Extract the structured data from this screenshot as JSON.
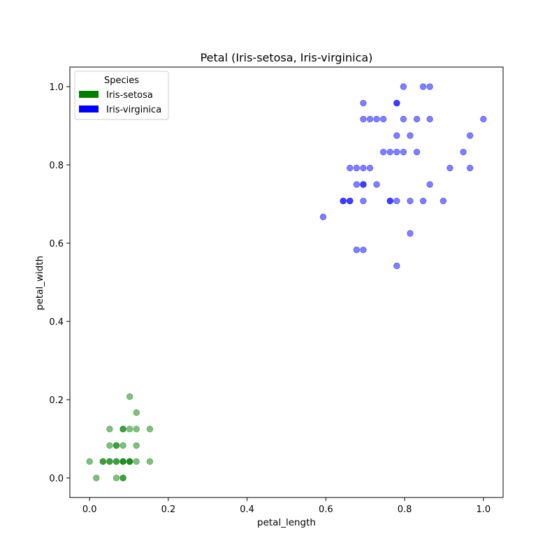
{
  "chart_data": {
    "type": "scatter",
    "title": "Petal (Iris-setosa, Iris-virginica)",
    "xlabel": "petal_length",
    "ylabel": "petal_width",
    "xlim": [
      -0.05,
      1.05
    ],
    "ylim": [
      -0.05,
      1.05
    ],
    "xticks": [
      0.0,
      0.2,
      0.4,
      0.6,
      0.8,
      1.0
    ],
    "yticks": [
      0.0,
      0.2,
      0.4,
      0.6,
      0.8,
      1.0
    ],
    "xtick_labels": [
      "0.0",
      "0.2",
      "0.4",
      "0.6",
      "0.8",
      "1.0"
    ],
    "ytick_labels": [
      "0.0",
      "0.2",
      "0.4",
      "0.6",
      "0.8",
      "1.0"
    ],
    "grid": false,
    "legend": {
      "title": "Species",
      "placement": "upper-left"
    },
    "point_alpha": 0.5,
    "series": [
      {
        "name": "Iris-setosa",
        "color": "#008000",
        "points": [
          [
            0.0,
            0.042
          ],
          [
            0.017,
            0.0
          ],
          [
            0.034,
            0.042
          ],
          [
            0.051,
            0.042
          ],
          [
            0.068,
            0.042
          ],
          [
            0.085,
            0.042
          ],
          [
            0.102,
            0.042
          ],
          [
            0.119,
            0.042
          ],
          [
            0.153,
            0.042
          ],
          [
            0.034,
            0.042
          ],
          [
            0.068,
            0.042
          ],
          [
            0.085,
            0.042
          ],
          [
            0.102,
            0.042
          ],
          [
            0.068,
            0.0
          ],
          [
            0.085,
            0.0
          ],
          [
            0.085,
            0.0
          ],
          [
            0.051,
            0.083
          ],
          [
            0.068,
            0.083
          ],
          [
            0.068,
            0.083
          ],
          [
            0.085,
            0.083
          ],
          [
            0.119,
            0.083
          ],
          [
            0.051,
            0.125
          ],
          [
            0.085,
            0.125
          ],
          [
            0.085,
            0.125
          ],
          [
            0.102,
            0.125
          ],
          [
            0.119,
            0.125
          ],
          [
            0.153,
            0.125
          ],
          [
            0.119,
            0.167
          ],
          [
            0.102,
            0.208
          ],
          [
            0.051,
            0.042
          ],
          [
            0.085,
            0.042
          ],
          [
            0.102,
            0.042
          ]
        ]
      },
      {
        "name": "Iris-virginica",
        "color": "#0000ff",
        "points": [
          [
            0.593,
            0.667
          ],
          [
            0.644,
            0.708
          ],
          [
            0.644,
            0.708
          ],
          [
            0.661,
            0.708
          ],
          [
            0.661,
            0.708
          ],
          [
            0.695,
            0.708
          ],
          [
            0.763,
            0.708
          ],
          [
            0.763,
            0.708
          ],
          [
            0.78,
            0.708
          ],
          [
            0.814,
            0.708
          ],
          [
            0.847,
            0.708
          ],
          [
            0.898,
            0.708
          ],
          [
            0.678,
            0.75
          ],
          [
            0.695,
            0.75
          ],
          [
            0.695,
            0.75
          ],
          [
            0.729,
            0.75
          ],
          [
            0.864,
            0.75
          ],
          [
            0.661,
            0.792
          ],
          [
            0.678,
            0.792
          ],
          [
            0.695,
            0.792
          ],
          [
            0.712,
            0.792
          ],
          [
            0.915,
            0.792
          ],
          [
            0.966,
            0.792
          ],
          [
            0.746,
            0.833
          ],
          [
            0.763,
            0.833
          ],
          [
            0.78,
            0.833
          ],
          [
            0.797,
            0.833
          ],
          [
            0.831,
            0.833
          ],
          [
            0.949,
            0.833
          ],
          [
            0.78,
            0.875
          ],
          [
            0.814,
            0.875
          ],
          [
            0.966,
            0.875
          ],
          [
            0.695,
            0.917
          ],
          [
            0.712,
            0.917
          ],
          [
            0.729,
            0.917
          ],
          [
            0.746,
            0.917
          ],
          [
            0.797,
            0.917
          ],
          [
            0.831,
            0.917
          ],
          [
            0.864,
            0.917
          ],
          [
            1.0,
            0.917
          ],
          [
            0.695,
            0.958
          ],
          [
            0.78,
            0.958
          ],
          [
            0.78,
            0.958
          ],
          [
            0.797,
            1.0
          ],
          [
            0.847,
            1.0
          ],
          [
            0.864,
            1.0
          ],
          [
            0.814,
            0.625
          ],
          [
            0.678,
            0.583
          ],
          [
            0.695,
            0.583
          ],
          [
            0.78,
            0.542
          ]
        ]
      }
    ]
  }
}
